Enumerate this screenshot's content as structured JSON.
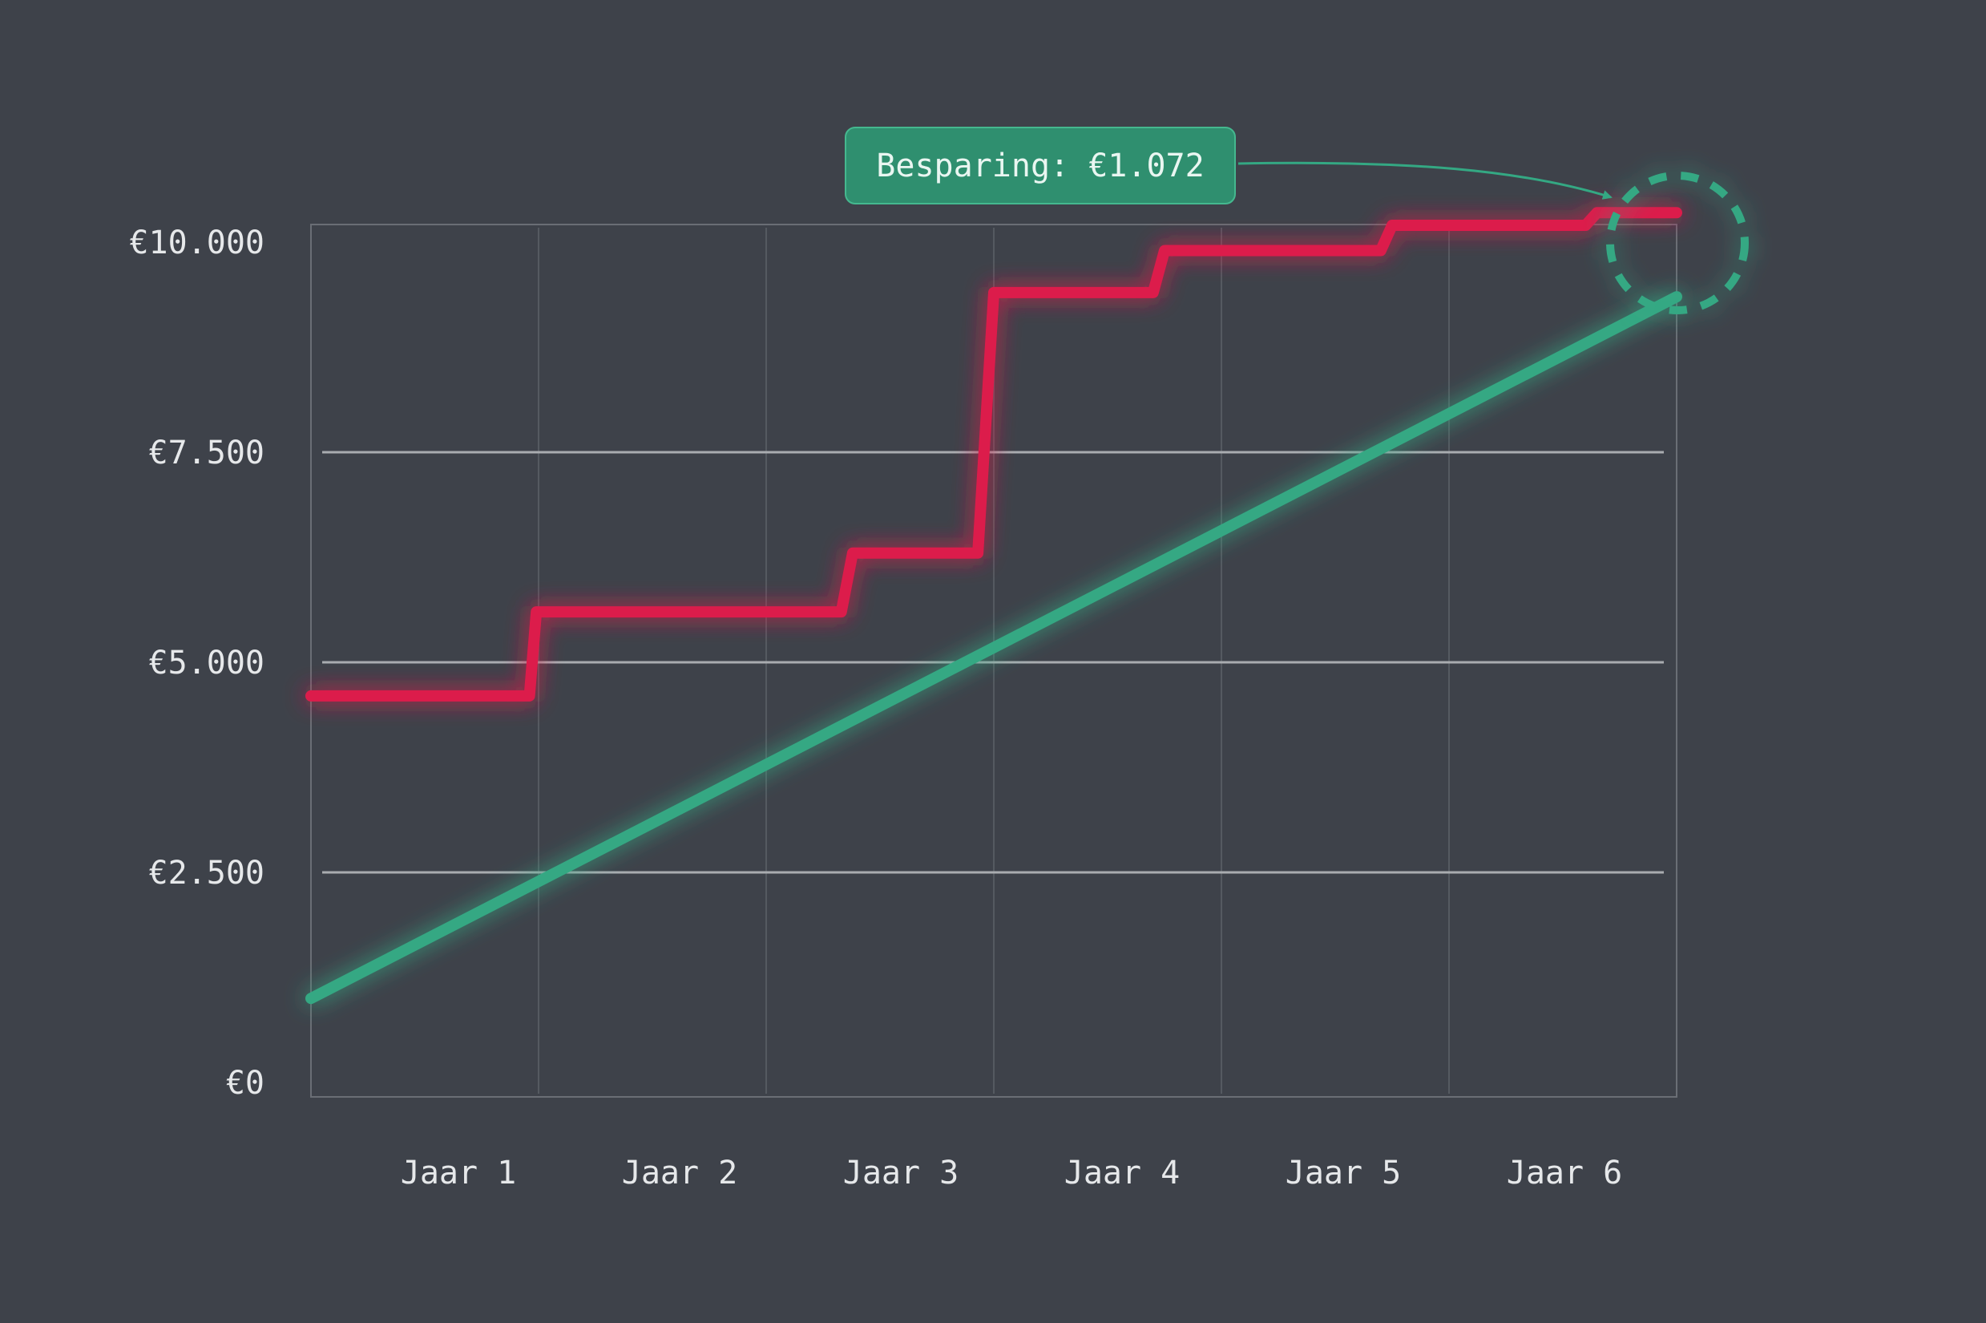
{
  "chart_data": {
    "type": "line",
    "categories": [
      "Jaar 1",
      "Jaar 2",
      "Jaar 3",
      "Jaar 4",
      "Jaar 5",
      "Jaar 6"
    ],
    "y_ticks": [
      "€0",
      "€2.500",
      "€5.000",
      "€7.500",
      "€10.000"
    ],
    "ylim": [
      0,
      10000
    ],
    "x_range": [
      0,
      6
    ],
    "grid": true,
    "series": [
      {
        "color": "#dc1f4b",
        "style": "step",
        "points": [
          [
            0,
            4600
          ],
          [
            0.96,
            4600
          ],
          [
            0.99,
            5600
          ],
          [
            2.33,
            5600
          ],
          [
            2.38,
            6300
          ],
          [
            2.93,
            6300
          ],
          [
            3.0,
            9400
          ],
          [
            3.7,
            9400
          ],
          [
            3.75,
            9900
          ],
          [
            4.7,
            9900
          ],
          [
            4.75,
            10200
          ],
          [
            5.6,
            10200
          ],
          [
            5.65,
            10350
          ],
          [
            6.0,
            10350
          ]
        ]
      },
      {
        "color": "#34a883",
        "style": "line",
        "points": [
          [
            0,
            1000
          ],
          [
            6.0,
            9350
          ]
        ]
      }
    ],
    "annotation": {
      "text": "Besparing: €1.072",
      "value": 1072,
      "color": "#2f8f6f"
    }
  }
}
